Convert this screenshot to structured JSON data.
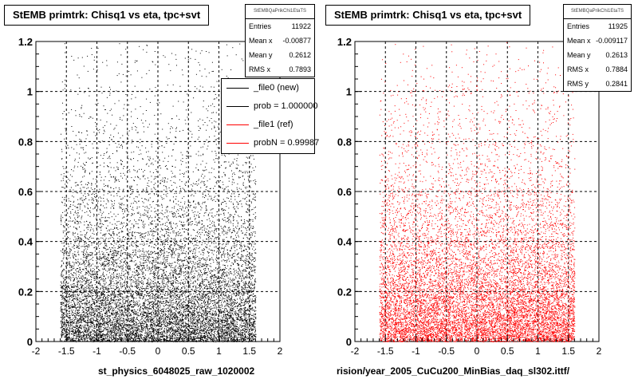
{
  "chart_data": [
    {
      "type": "scatter",
      "title": "StEMB primtrk: Chisq1 vs eta, tpc+svt",
      "xlabel": "st_physics_6048025_raw_1020002",
      "ylabel": "",
      "xlim": [
        -2,
        2
      ],
      "ylim": [
        0,
        1.2
      ],
      "x_ticks": [
        "-2",
        "-1.5",
        "-1",
        "-0.5",
        "0",
        "0.5",
        "1",
        "1.5",
        "2"
      ],
      "y_ticks": [
        "0",
        "0.2",
        "0.4",
        "0.6",
        "0.8",
        "1",
        "1.2"
      ],
      "grid": true,
      "marker_color": "#000000",
      "eta_range": [
        -1.6,
        1.6
      ],
      "stats": {
        "header": "StEMBQaPrikChi1EtaTS",
        "rows": [
          {
            "label": "Entries",
            "value": "11922"
          },
          {
            "label": "Mean x",
            "value": "-0.00877"
          },
          {
            "label": "Mean y",
            "value": "0.2612"
          },
          {
            "label": "RMS x",
            "value": "0.7893"
          }
        ]
      },
      "legend": {
        "placement": "top-right",
        "entries": [
          {
            "label": "_file0 (new)",
            "color": "#000000"
          },
          {
            "label": "prob = 1.000000",
            "color": "#000000"
          },
          {
            "label": "_file1 (ref)",
            "color": "#ff0000"
          },
          {
            "label": "probN = 0.99987",
            "color": "#ff0000"
          }
        ]
      }
    },
    {
      "type": "scatter",
      "title": "StEMB primtrk: Chisq1 vs eta, tpc+svt",
      "xlabel": "rision/year_2005_CuCu200_MinBias_daq_sl302.ittf/",
      "ylabel": "",
      "xlim": [
        -2,
        2
      ],
      "ylim": [
        0,
        1.2
      ],
      "x_ticks": [
        "-2",
        "-1.5",
        "-1",
        "-0.5",
        "0",
        "0.5",
        "1",
        "1.5",
        "2"
      ],
      "y_ticks": [
        "0",
        "0.2",
        "0.4",
        "0.6",
        "0.8",
        "1",
        "1.2"
      ],
      "grid": true,
      "marker_color": "#ff0000",
      "eta_range": [
        -1.6,
        1.6
      ],
      "stats": {
        "header": "StEMBQaPrikChi1EtaTS",
        "rows": [
          {
            "label": "Entries",
            "value": "11925"
          },
          {
            "label": "Mean x",
            "value": "-0.009117"
          },
          {
            "label": "Mean y",
            "value": "0.2613"
          },
          {
            "label": "RMS x",
            "value": "0.7884"
          },
          {
            "label": "RMS y",
            "value": "0.2841"
          }
        ]
      }
    }
  ]
}
